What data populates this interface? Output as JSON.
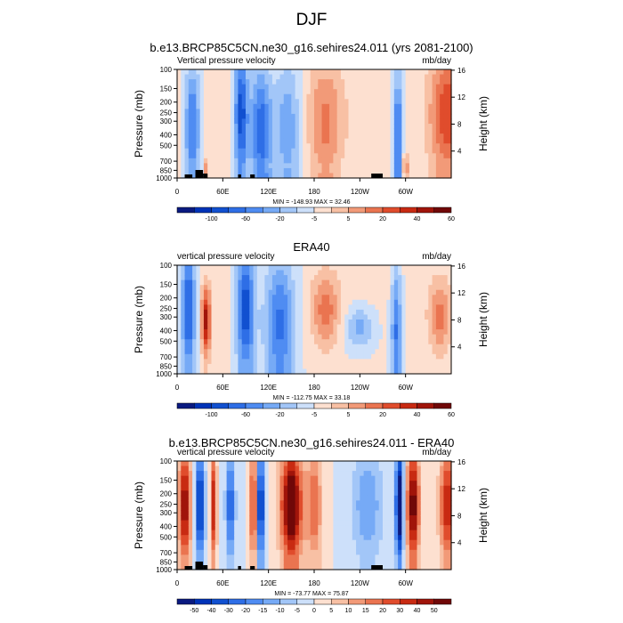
{
  "title": "DJF",
  "panels": [
    {
      "title": "b.e13.BRCP85C5CN.ne30_g16.sehires24.011 (yrs 2081-2100)",
      "left_label": "Vertical pressure velocity",
      "units": "mb/day",
      "stats": "MIN = -148.93  MAX = 32.46",
      "colorbar_labels": [
        "-100",
        "-60",
        "-20",
        "-5",
        "5",
        "20",
        "40",
        "60"
      ],
      "has_topography": true
    },
    {
      "title": "ERA40",
      "left_label": "vertical pressure velocity",
      "units": "mb/day",
      "stats": "MIN = -112.75  MAX = 33.18",
      "colorbar_labels": [
        "-100",
        "-60",
        "-20",
        "-5",
        "5",
        "20",
        "40",
        "60"
      ],
      "has_topography": false
    },
    {
      "title": "b.e13.BRCP85C5CN.ne30_g16.sehires24.011 - ERA40",
      "left_label": "vertical pressure velocity",
      "units": "mb/day",
      "stats": "MIN = -73.77  MAX = 75.87",
      "colorbar_labels": [
        "-50",
        "-40",
        "-30",
        "-20",
        "-15",
        "-10",
        "-5",
        "0",
        "5",
        "10",
        "15",
        "20",
        "30",
        "40",
        "50"
      ],
      "has_topography": true
    }
  ],
  "chart_data": {
    "type": "heatmap",
    "ylabel": "Pressure (mb)",
    "y2label": "Height (km)",
    "x_ticks": [
      "0",
      "60E",
      "120E",
      "180",
      "120W",
      "60W"
    ],
    "x_tick_values": [
      0,
      60,
      120,
      180,
      240,
      300
    ],
    "xlim": [
      0,
      360
    ],
    "y_ticks": [
      "100",
      "150",
      "200",
      "250",
      "300",
      "400",
      "500",
      "700",
      "850",
      "1000"
    ],
    "y_tick_values": [
      100,
      150,
      200,
      250,
      300,
      400,
      500,
      700,
      850,
      1000
    ],
    "ylim": [
      1000,
      100
    ],
    "y2_ticks": [
      "4",
      "8",
      "12",
      "16"
    ],
    "colors_full": [
      "#0a1a80",
      "#0033b8",
      "#1150d0",
      "#2e6ee6",
      "#4f8cf2",
      "#76aaf6",
      "#a2c6f8",
      "#cde0fa",
      "#fde0d0",
      "#f8c0a4",
      "#f29a78",
      "#ea7450",
      "#e04c2c",
      "#c82a12",
      "#a0140a",
      "#700808"
    ],
    "colors_diff": [
      "#0a1a80",
      "#0033b8",
      "#1150d0",
      "#2e6ee6",
      "#4f8cf2",
      "#76aaf6",
      "#a2c6f8",
      "#cde0fa",
      "#fde0d0",
      "#f8c0a4",
      "#f29a78",
      "#ea7450",
      "#e04c2c",
      "#c82a12",
      "#a0140a",
      "#700808"
    ]
  }
}
